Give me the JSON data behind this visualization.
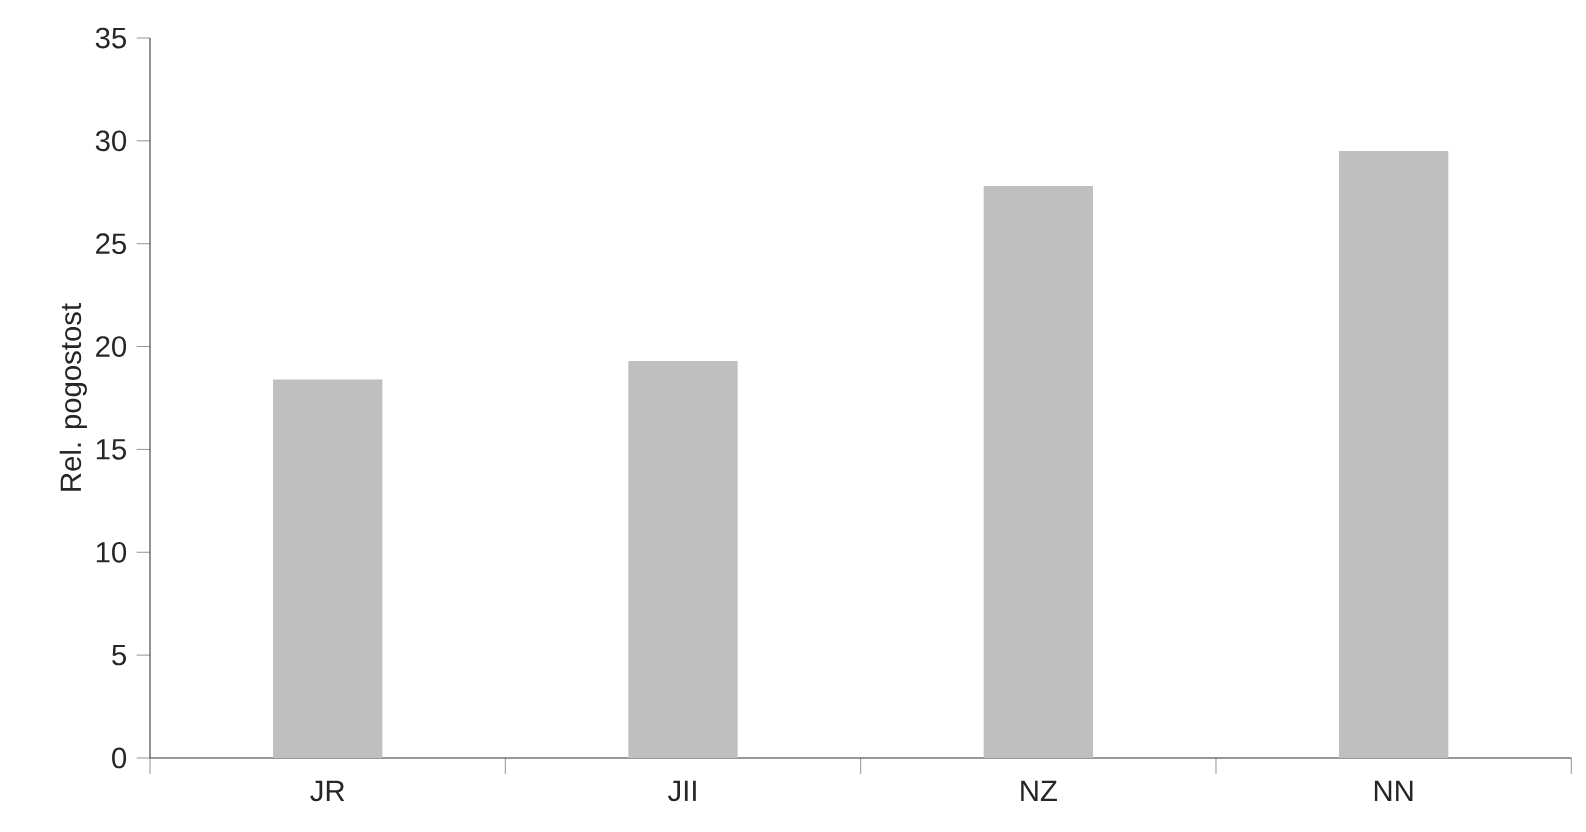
{
  "chart_data": {
    "type": "bar",
    "ylabel": "Rel. pogostost",
    "categories": [
      "JR",
      "JII",
      "NZ",
      "NN"
    ],
    "values": [
      18.4,
      19.3,
      27.8,
      29.5
    ],
    "color": "#bfbfbf",
    "ylim": [
      0,
      35
    ],
    "yticks": [
      0,
      5,
      10,
      15,
      20,
      25,
      30,
      35
    ],
    "grid": false
  }
}
